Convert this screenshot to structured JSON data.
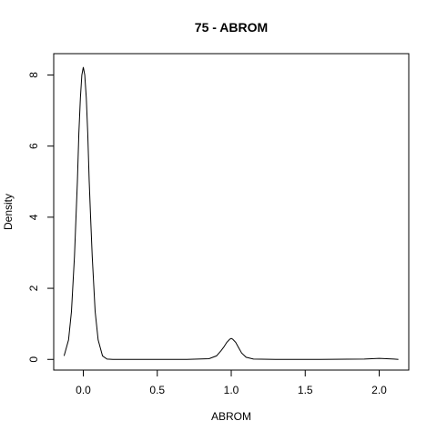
{
  "chart_data": {
    "type": "line",
    "title": "75 - ABROM",
    "xlabel": "ABROM",
    "ylabel": "Density",
    "xlim": [
      -0.2,
      2.2
    ],
    "ylim": [
      -0.3,
      8.6
    ],
    "xticks": [
      0.0,
      0.5,
      1.0,
      1.5,
      2.0
    ],
    "xtick_labels": [
      "0.0",
      "0.5",
      "1.0",
      "1.5",
      "2.0"
    ],
    "yticks": [
      0,
      2,
      4,
      6,
      8
    ],
    "ytick_labels": [
      "0",
      "2",
      "4",
      "6",
      "8"
    ],
    "grid": false,
    "legend": "none",
    "line_color": "#000000",
    "series": [
      {
        "x": [
          -0.13,
          -0.1,
          -0.08,
          -0.06,
          -0.05,
          -0.04,
          -0.03,
          -0.02,
          -0.01,
          0.0,
          0.01,
          0.02,
          0.03,
          0.04,
          0.05,
          0.06,
          0.08,
          0.1,
          0.13,
          0.16,
          0.2,
          0.3,
          0.5,
          0.7,
          0.85,
          0.9,
          0.93,
          0.95,
          0.97,
          0.99,
          1.0,
          1.01,
          1.03,
          1.05,
          1.07,
          1.1,
          1.15,
          1.3,
          1.6,
          1.9,
          1.95,
          2.0,
          2.05,
          2.1,
          2.13
        ],
        "y": [
          0.1,
          0.55,
          1.35,
          2.9,
          3.95,
          5.0,
          6.35,
          7.35,
          8.0,
          8.22,
          8.0,
          7.35,
          6.35,
          5.0,
          3.95,
          2.9,
          1.35,
          0.55,
          0.1,
          0.01,
          0.0,
          0.0,
          0.0,
          0.0,
          0.02,
          0.1,
          0.24,
          0.35,
          0.48,
          0.57,
          0.59,
          0.57,
          0.48,
          0.33,
          0.18,
          0.06,
          0.01,
          0.0,
          0.0,
          0.01,
          0.02,
          0.03,
          0.02,
          0.01,
          0.0
        ]
      }
    ]
  }
}
